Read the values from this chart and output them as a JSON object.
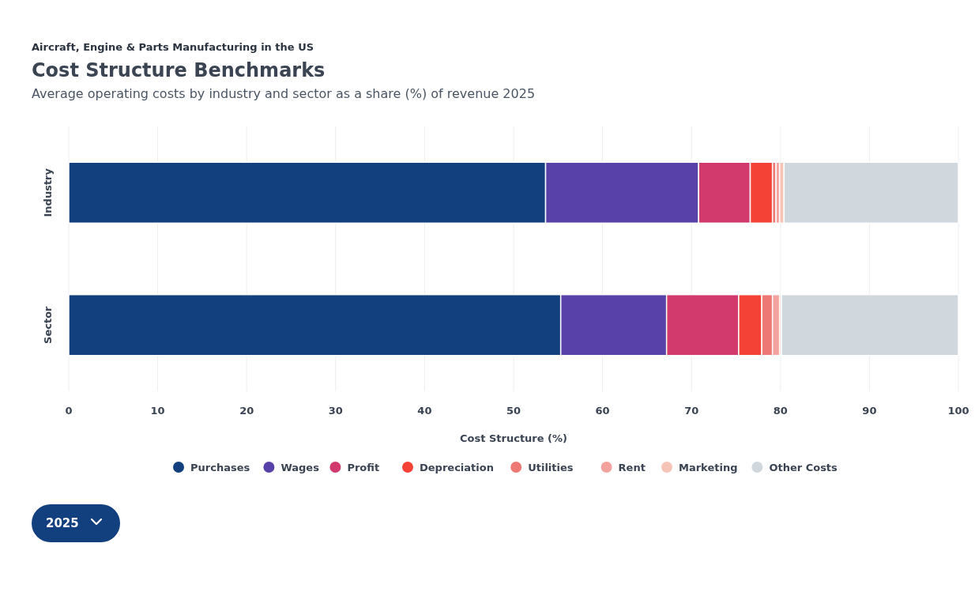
{
  "chart_data": {
    "type": "bar",
    "orientation": "horizontal",
    "stacked": true,
    "title": "Cost Structure Benchmarks",
    "subtitle": "Aircraft, Engine & Parts Manufacturing in the US",
    "annotations": [
      "Average operating costs by industry and sector as a share (%) of revenue 2025",
      "2025"
    ],
    "xlabel": "Cost Structure (%)",
    "categories": [
      "Industry",
      "Sector"
    ],
    "xlim": [
      0,
      100
    ],
    "xticks": [
      0,
      10,
      20,
      30,
      40,
      50,
      60,
      70,
      80,
      90,
      100
    ],
    "grid": "x",
    "legend": "bottom",
    "series": [
      {
        "name": "Purchases",
        "color": "#123f7d",
        "values": [
          53.6,
          55.3
        ]
      },
      {
        "name": "Wages",
        "color": "#5841a9",
        "values": [
          17.2,
          11.9
        ]
      },
      {
        "name": "Profit",
        "color": "#d23a6e",
        "values": [
          5.8,
          8.1
        ]
      },
      {
        "name": "Depreciation",
        "color": "#f44336",
        "values": [
          2.5,
          2.6
        ]
      },
      {
        "name": "Utilities",
        "color": "#ee7874",
        "values": [
          0.4,
          1.2
        ]
      },
      {
        "name": "Rent",
        "color": "#f3a29e",
        "values": [
          0.4,
          0.8
        ]
      },
      {
        "name": "Marketing",
        "color": "#f5c4b6",
        "values": [
          0.5,
          0.2
        ]
      },
      {
        "name": "Other Costs",
        "color": "#d0d8de",
        "values": [
          19.6,
          19.9
        ]
      }
    ]
  }
}
